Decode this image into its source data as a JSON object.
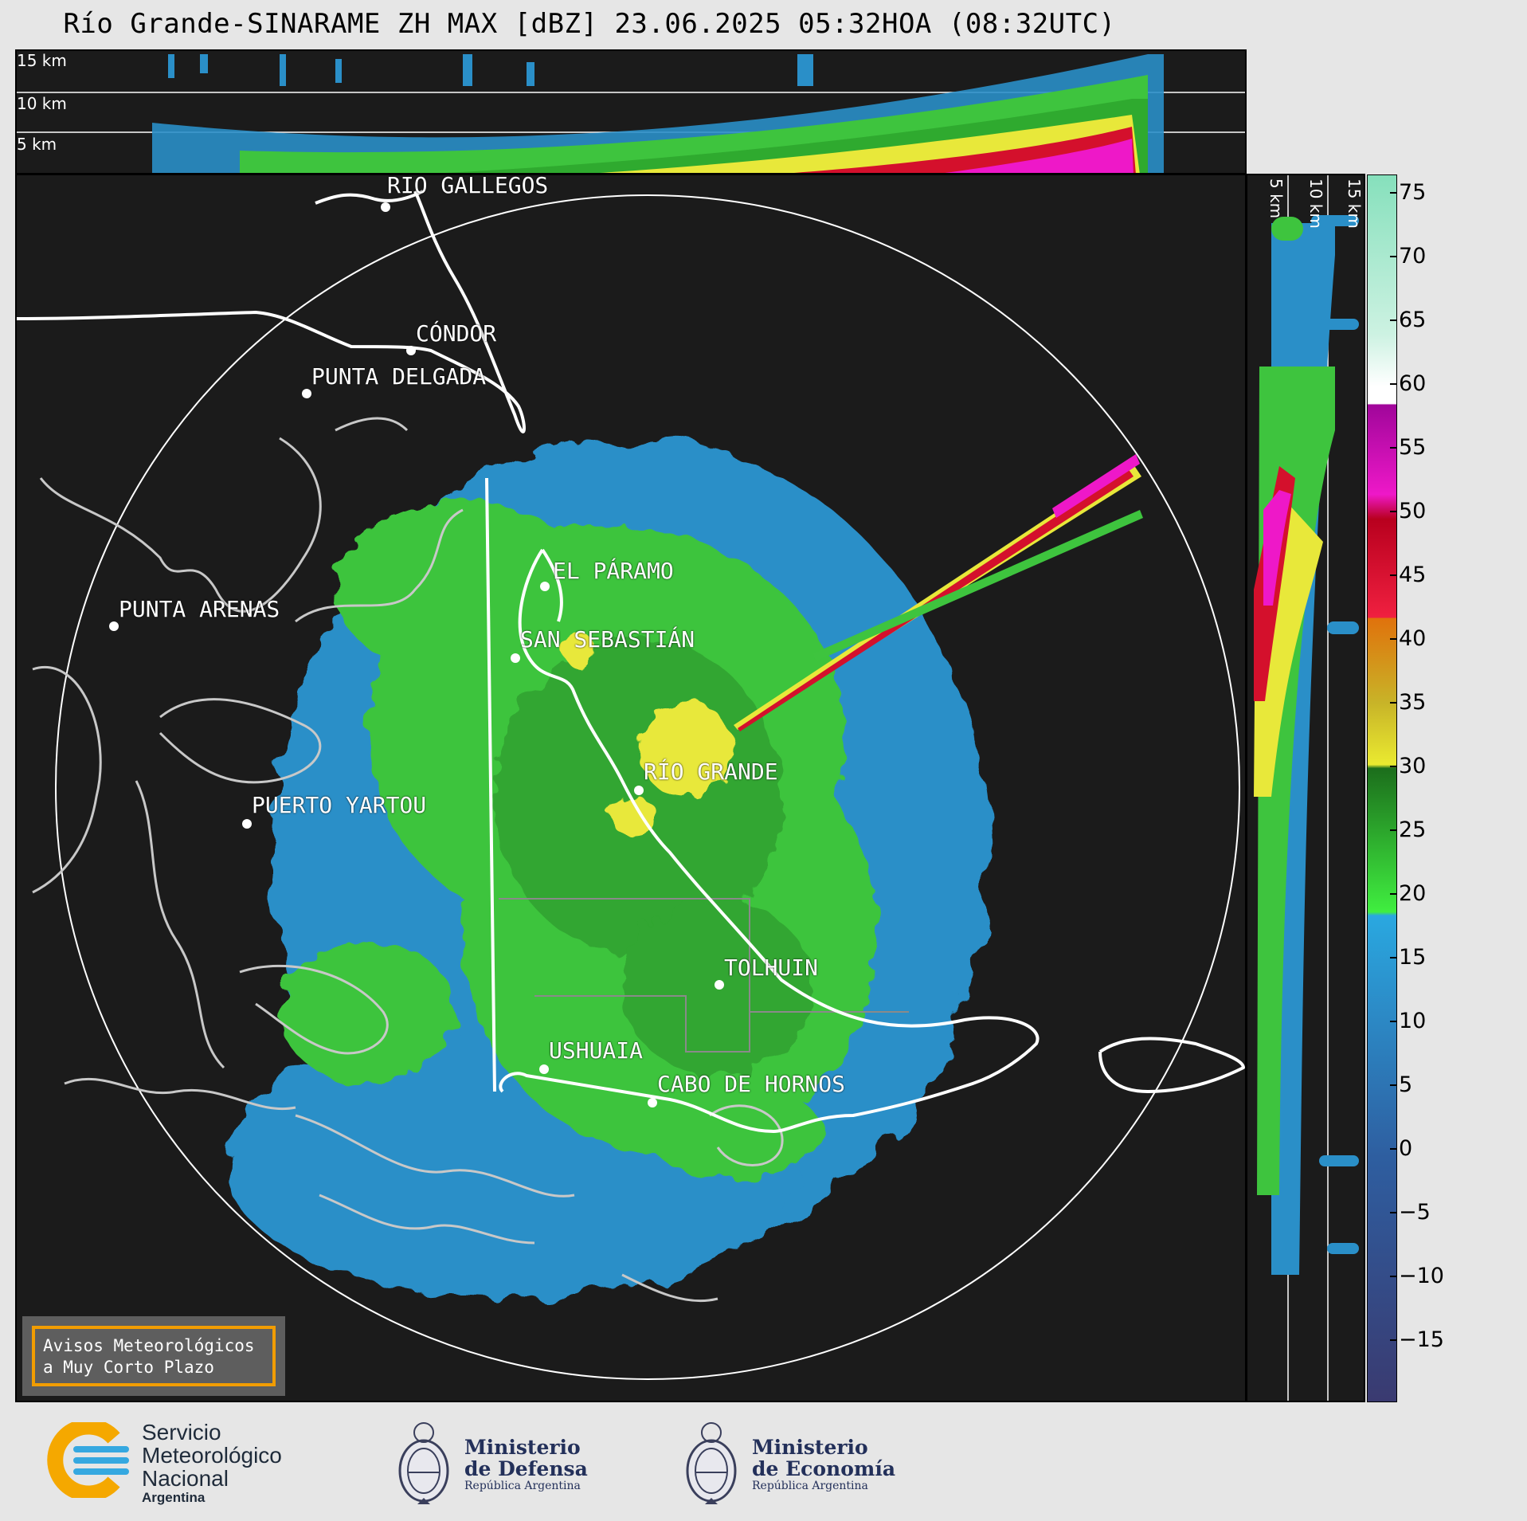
{
  "header": {
    "title": "Río Grande-SINARAME ZH MAX [dBZ] 23.06.2025 05:32HOA (08:32UTC)"
  },
  "top_panel": {
    "altitude_labels": [
      "15 km",
      "10 km",
      "5 km"
    ]
  },
  "side_panel": {
    "altitude_labels": [
      "5 km",
      "10 km",
      "15 km"
    ]
  },
  "colorbar": {
    "unit": "dBZ",
    "ticks": [
      "75",
      "70",
      "65",
      "60",
      "55",
      "50",
      "45",
      "40",
      "35",
      "30",
      "25",
      "20",
      "15",
      "10",
      "5",
      "0",
      "−5",
      "−10",
      "−15"
    ],
    "range": [
      -19.5,
      76.5
    ]
  },
  "map": {
    "cities": [
      {
        "name": "RÍO GALLEGOS"
      },
      {
        "name": "CÓNDOR"
      },
      {
        "name": "PUNTA DELGADA"
      },
      {
        "name": "PUNTA ARENAS"
      },
      {
        "name": "EL PÁRAMO"
      },
      {
        "name": "SAN SEBASTIÁN"
      },
      {
        "name": "RÍO GRANDE"
      },
      {
        "name": "PUERTO YARTOU"
      },
      {
        "name": "TOLHUIN"
      },
      {
        "name": "USHUAIA"
      },
      {
        "name": "CABO DE HORNOS"
      }
    ]
  },
  "warning": {
    "line1": "Avisos Meteorológicos",
    "line2": "a Muy Corto Plazo"
  },
  "footer": {
    "smn": {
      "line1": "Servicio",
      "line2": "Meteorológico",
      "line3": "Nacional",
      "line4": "Argentina"
    },
    "defensa": {
      "line1": "Ministerio",
      "line2": "de Defensa",
      "line3": "República Argentina"
    },
    "economia": {
      "line1": "Ministerio",
      "line2": "de Economía",
      "line3": "República Argentina"
    }
  },
  "colors": {
    "background": "#1b1b1b",
    "weak_echo": "#2a8fc8",
    "moderate_echo": "#3ec43e",
    "strong_echo": "#e8e83a",
    "heavy_echo": "#d4102c",
    "extreme_echo": "#ee18c8"
  }
}
